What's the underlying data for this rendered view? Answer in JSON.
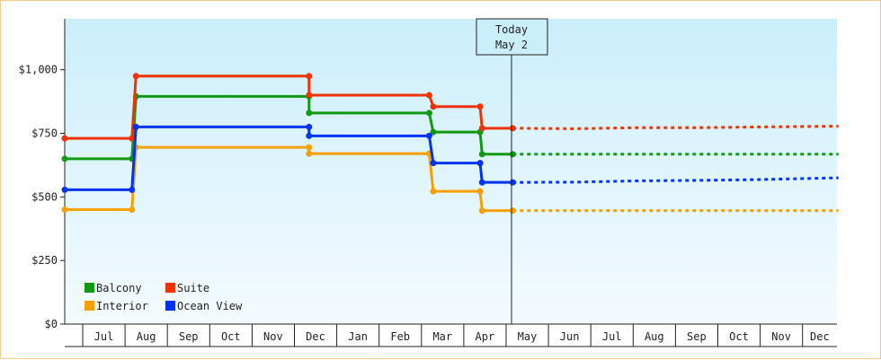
{
  "chart_data": {
    "type": "line",
    "style": "step",
    "title": "",
    "xlabel": "",
    "ylabel": "",
    "ylim": [
      0,
      1200
    ],
    "y_ticks": [
      0,
      250,
      500,
      750,
      1000
    ],
    "y_tick_labels": [
      "$0",
      "$250",
      "$500",
      "$750",
      "$1,000"
    ],
    "x_categories": [
      "Jul",
      "Aug",
      "Sep",
      "Oct",
      "Nov",
      "Dec",
      "Jan",
      "Feb",
      "Mar",
      "Apr",
      "May",
      "Jun",
      "Jul",
      "Aug",
      "Sep",
      "Oct",
      "Nov",
      "Dec"
    ],
    "grid": false,
    "legend": "bottom-left",
    "today_marker": {
      "line1": "Today",
      "line2": "May 2",
      "x": 10.0
    },
    "series": [
      {
        "name": "Balcony",
        "color": "#119911",
        "points": [
          [
            0,
            650
          ],
          [
            1.65,
            650
          ],
          [
            1.75,
            895
          ],
          [
            6.0,
            895
          ],
          [
            6.0,
            830
          ],
          [
            8.95,
            830
          ],
          [
            9.05,
            755
          ],
          [
            10.2,
            755
          ],
          [
            10.25,
            668
          ],
          [
            11.0,
            668
          ]
        ],
        "projected": [
          [
            11.0,
            668
          ],
          [
            19.0,
            668
          ]
        ],
        "marker_x": [
          0,
          1.65,
          1.75,
          6.0,
          6.0,
          8.95,
          9.05,
          10.2,
          10.25,
          11.0
        ]
      },
      {
        "name": "Suite",
        "color": "#ee3300",
        "points": [
          [
            0,
            730
          ],
          [
            1.65,
            730
          ],
          [
            1.75,
            975
          ],
          [
            6.0,
            975
          ],
          [
            6.0,
            900
          ],
          [
            8.95,
            900
          ],
          [
            9.05,
            855
          ],
          [
            10.2,
            855
          ],
          [
            10.25,
            770
          ],
          [
            11.0,
            770
          ]
        ],
        "projected": [
          [
            11.0,
            770
          ],
          [
            12.5,
            768
          ],
          [
            14.0,
            772
          ],
          [
            15.5,
            772
          ],
          [
            17.0,
            775
          ],
          [
            19.0,
            778
          ]
        ],
        "marker_x": [
          0,
          1.65,
          1.75,
          6.0,
          6.0,
          8.95,
          9.05,
          10.2,
          10.25,
          11.0
        ]
      },
      {
        "name": "Interior",
        "color": "#f5a000",
        "points": [
          [
            0,
            450
          ],
          [
            1.65,
            450
          ],
          [
            1.75,
            695
          ],
          [
            6.0,
            695
          ],
          [
            6.0,
            670
          ],
          [
            8.95,
            670
          ],
          [
            9.05,
            522
          ],
          [
            10.2,
            522
          ],
          [
            10.25,
            446
          ],
          [
            11.0,
            446
          ]
        ],
        "projected": [
          [
            11.0,
            446
          ],
          [
            19.0,
            446
          ]
        ],
        "marker_x": [
          0,
          1.65,
          1.75,
          6.0,
          6.0,
          8.95,
          9.05,
          10.2,
          10.25,
          11.0
        ]
      },
      {
        "name": "Ocean View",
        "color": "#0033ee",
        "points": [
          [
            0,
            528
          ],
          [
            1.65,
            528
          ],
          [
            1.75,
            775
          ],
          [
            6.0,
            775
          ],
          [
            6.0,
            740
          ],
          [
            8.95,
            740
          ],
          [
            9.05,
            633
          ],
          [
            10.2,
            633
          ],
          [
            10.25,
            557
          ],
          [
            11.0,
            557
          ]
        ],
        "projected": [
          [
            11.0,
            557
          ],
          [
            12.5,
            558
          ],
          [
            14.0,
            563
          ],
          [
            15.5,
            565
          ],
          [
            17.0,
            568
          ],
          [
            19.0,
            575
          ]
        ],
        "marker_x": [
          0,
          1.65,
          1.75,
          6.0,
          6.0,
          8.95,
          9.05,
          10.2,
          10.25,
          11.0
        ]
      }
    ]
  }
}
